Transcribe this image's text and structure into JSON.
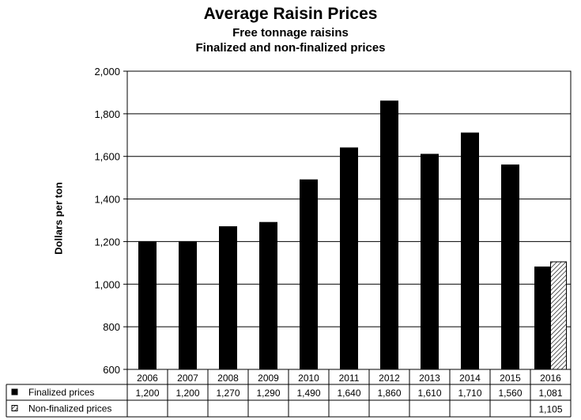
{
  "chart_data": {
    "type": "bar",
    "title": "Average Raisin Prices",
    "subtitle": [
      "Free tonnage raisins",
      "Finalized and non-finalized prices"
    ],
    "ylabel": "Dollars per ton",
    "xlabel": "",
    "ylim": [
      600,
      2000
    ],
    "yticks": [
      600,
      800,
      "1,000",
      "1,200",
      "1,400",
      "1,600",
      "1,800",
      "2,000"
    ],
    "ytick_values": [
      600,
      800,
      1000,
      1200,
      1400,
      1600,
      1800,
      2000
    ],
    "grid": true,
    "categories": [
      "2006",
      "2007",
      "2008",
      "2009",
      "2010",
      "2011",
      "2012",
      "2013",
      "2014",
      "2015",
      "2016"
    ],
    "series": [
      {
        "name": "Finalized prices",
        "color": "#000000",
        "pattern": "solid",
        "values": [
          1200,
          1200,
          1270,
          1290,
          1490,
          1640,
          1860,
          1610,
          1710,
          1560,
          1081
        ],
        "labels": [
          "1,200",
          "1,200",
          "1,270",
          "1,290",
          "1,490",
          "1,640",
          "1,860",
          "1,610",
          "1,710",
          "1,560",
          "1,081"
        ]
      },
      {
        "name": "Non-finalized prices",
        "color": "#ffffff",
        "pattern": "diagonal-hatch",
        "values": [
          null,
          null,
          null,
          null,
          null,
          null,
          null,
          null,
          null,
          null,
          1105
        ],
        "labels": [
          "",
          "",
          "",
          "",
          "",
          "",
          "",
          "",
          "",
          "",
          "1,105"
        ]
      }
    ],
    "legend_placement": "data-table"
  }
}
